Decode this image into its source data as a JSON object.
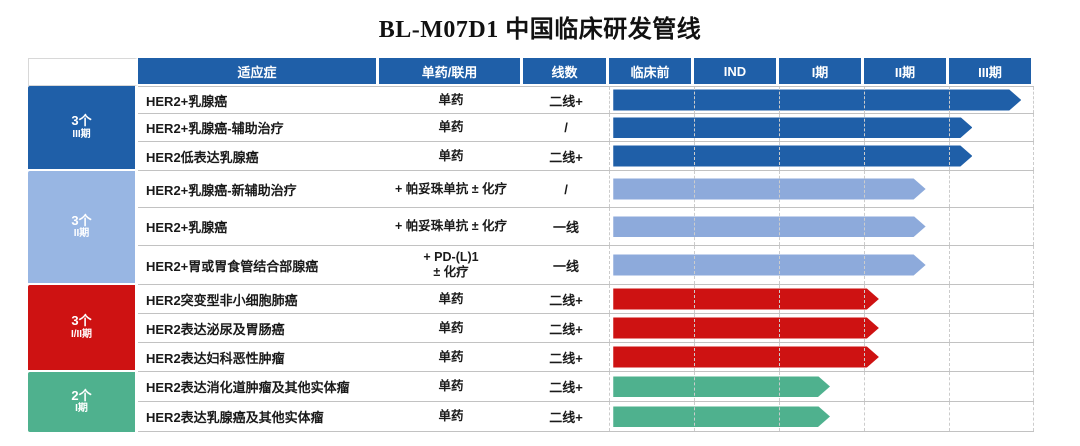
{
  "title": "BL-M07D1 中国临床研发管线",
  "colors": {
    "header_bg": "#1F5FA8",
    "row_grid": "#c2c2c2",
    "dashed_gridline": "#cccccc"
  },
  "table": {
    "headers": {
      "indication": "适应症",
      "combo": "单药/联用",
      "line": "线数",
      "phases": [
        "临床前",
        "IND",
        "I期",
        "II期",
        "III期"
      ]
    },
    "groups": [
      {
        "count_label": "3个",
        "stage_label": "III期",
        "block_color": "#1F5FA8",
        "bar_color": "#1F5FA8",
        "rows": [
          {
            "indication": "HER2+乳腺癌",
            "combo": "单药",
            "line": "二线+",
            "bar_end_pct": 97
          },
          {
            "indication": "HER2+乳腺癌-辅助治疗",
            "combo": "单药",
            "line": "/",
            "bar_end_pct": 85.5
          },
          {
            "indication": "HER2低表达乳腺癌",
            "combo": "单药",
            "line": "二线+",
            "bar_end_pct": 85.5
          }
        ]
      },
      {
        "count_label": "3个",
        "stage_label": "II期",
        "block_color": "#98B6E3",
        "bar_color": "#8DAADB",
        "rows": [
          {
            "indication": "HER2+乳腺癌-新辅助治疗",
            "combo": "+ 帕妥珠单抗 ± 化疗",
            "line": "/",
            "bar_end_pct": 74.5
          },
          {
            "indication": "HER2+乳腺癌",
            "combo": "+ 帕妥珠单抗 ± 化疗",
            "line": "一线",
            "bar_end_pct": 74.5
          },
          {
            "indication": "HER2+胃或胃食管结合部腺癌",
            "combo": "+ PD-(L)1\n± 化疗",
            "line": "一线",
            "bar_end_pct": 74.5
          }
        ]
      },
      {
        "count_label": "3个",
        "stage_label": "I/II期",
        "block_color": "#CE1212",
        "bar_color": "#CE1212",
        "rows": [
          {
            "indication": "HER2突变型非小细胞肺癌",
            "combo": "单药",
            "line": "二线+",
            "bar_end_pct": 63.5
          },
          {
            "indication": "HER2表达泌尿及胃肠癌",
            "combo": "单药",
            "line": "二线+",
            "bar_end_pct": 63.5
          },
          {
            "indication": "HER2表达妇科恶性肿瘤",
            "combo": "单药",
            "line": "二线+",
            "bar_end_pct": 63.5
          }
        ]
      },
      {
        "count_label": "2个",
        "stage_label": "I期",
        "block_color": "#4FB18E",
        "bar_color": "#4FB18E",
        "rows": [
          {
            "indication": "HER2表达消化道肿瘤及其他实体瘤",
            "combo": "单药",
            "line": "二线+",
            "bar_end_pct": 52
          },
          {
            "indication": "HER2表达乳腺癌及其他实体瘤",
            "combo": "单药",
            "line": "二线+",
            "bar_end_pct": 52
          }
        ]
      }
    ]
  },
  "chart_data": {
    "type": "bar",
    "orientation": "horizontal",
    "title": "BL-M07D1 中国临床研发管线",
    "x_axis_stages": [
      "临床前",
      "IND",
      "I期",
      "II期",
      "III期"
    ],
    "legend_groups": [
      {
        "label": "3个 III期",
        "color": "#1F5FA8"
      },
      {
        "label": "3个 II期",
        "color": "#8DAADB"
      },
      {
        "label": "3个 I/II期",
        "color": "#CE1212"
      },
      {
        "label": "2个 I期",
        "color": "#4FB18E"
      }
    ],
    "series": [
      {
        "indication": "HER2+乳腺癌",
        "regimen": "单药",
        "line": "二线+",
        "group": "III期",
        "stage_reached": "III期",
        "progress_pct_of_axis": 97
      },
      {
        "indication": "HER2+乳腺癌-辅助治疗",
        "regimen": "单药",
        "line": "/",
        "group": "III期",
        "stage_reached": "III期",
        "progress_pct_of_axis": 85.5
      },
      {
        "indication": "HER2低表达乳腺癌",
        "regimen": "单药",
        "line": "二线+",
        "group": "III期",
        "stage_reached": "III期",
        "progress_pct_of_axis": 85.5
      },
      {
        "indication": "HER2+乳腺癌-新辅助治疗",
        "regimen": "+ 帕妥珠单抗 ± 化疗",
        "line": "/",
        "group": "II期",
        "stage_reached": "II期",
        "progress_pct_of_axis": 74.5
      },
      {
        "indication": "HER2+乳腺癌",
        "regimen": "+ 帕妥珠单抗 ± 化疗",
        "line": "一线",
        "group": "II期",
        "stage_reached": "II期",
        "progress_pct_of_axis": 74.5
      },
      {
        "indication": "HER2+胃或胃食管结合部腺癌",
        "regimen": "+ PD-(L)1 ± 化疗",
        "line": "一线",
        "group": "II期",
        "stage_reached": "II期",
        "progress_pct_of_axis": 74.5
      },
      {
        "indication": "HER2突变型非小细胞肺癌",
        "regimen": "单药",
        "line": "二线+",
        "group": "I/II期",
        "stage_reached": "II期",
        "progress_pct_of_axis": 63.5
      },
      {
        "indication": "HER2表达泌尿及胃肠癌",
        "regimen": "单药",
        "line": "二线+",
        "group": "I/II期",
        "stage_reached": "II期",
        "progress_pct_of_axis": 63.5
      },
      {
        "indication": "HER2表达妇科恶性肿瘤",
        "regimen": "单药",
        "line": "二线+",
        "group": "I/II期",
        "stage_reached": "II期",
        "progress_pct_of_axis": 63.5
      },
      {
        "indication": "HER2表达消化道肿瘤及其他实体瘤",
        "regimen": "单药",
        "line": "二线+",
        "group": "I期",
        "stage_reached": "I期",
        "progress_pct_of_axis": 52
      },
      {
        "indication": "HER2表达乳腺癌及其他实体瘤",
        "regimen": "单药",
        "line": "二线+",
        "group": "I期",
        "stage_reached": "I期",
        "progress_pct_of_axis": 52
      }
    ]
  }
}
